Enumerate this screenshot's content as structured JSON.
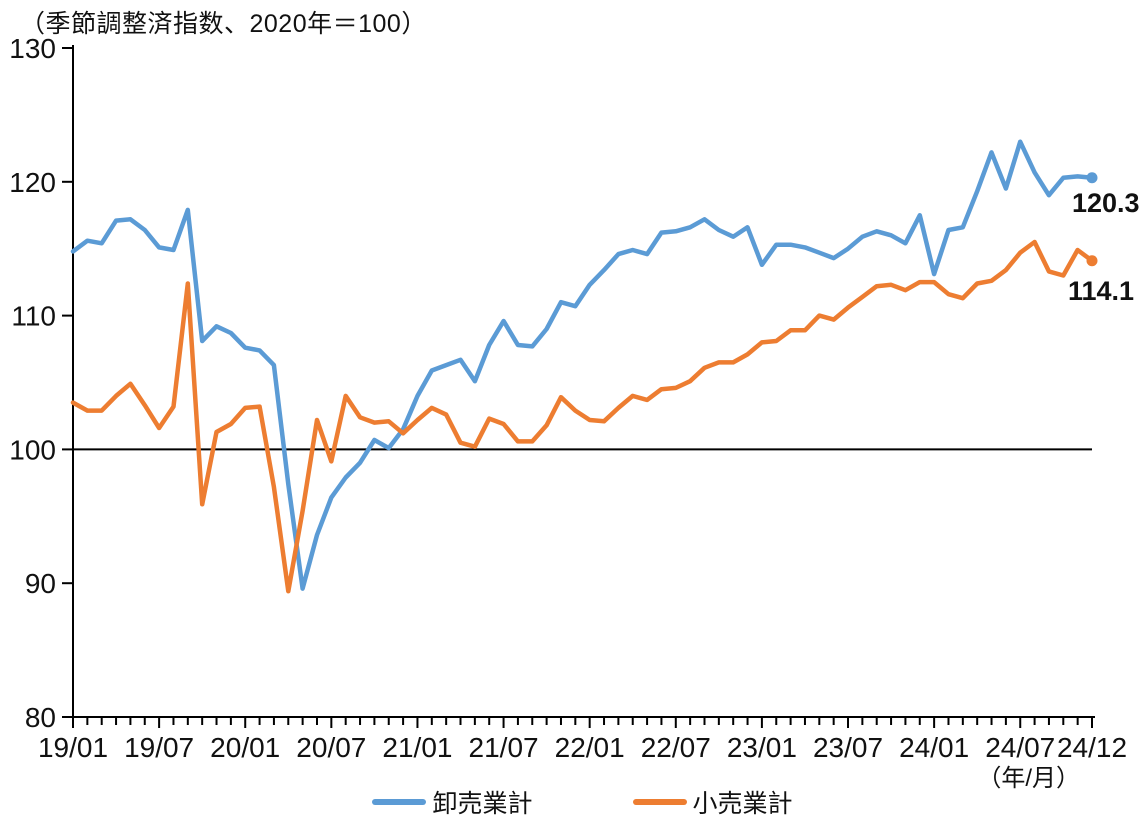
{
  "chart_data": {
    "type": "line",
    "title": "（季節調整済指数、2020年＝100）",
    "x_unit_label": "（年/月）",
    "xlabel": "",
    "ylabel": "",
    "ylim": [
      80,
      130
    ],
    "y_ticks": [
      80,
      90,
      100,
      110,
      120,
      130
    ],
    "baseline": 100,
    "grid": false,
    "legend_position": "bottom",
    "x_tick_indices": [
      0,
      6,
      12,
      18,
      24,
      30,
      36,
      42,
      48,
      54,
      60,
      66,
      71
    ],
    "categories": [
      "19/01",
      "19/02",
      "19/03",
      "19/04",
      "19/05",
      "19/06",
      "19/07",
      "19/08",
      "19/09",
      "19/10",
      "19/11",
      "19/12",
      "20/01",
      "20/02",
      "20/03",
      "20/04",
      "20/05",
      "20/06",
      "20/07",
      "20/08",
      "20/09",
      "20/10",
      "20/11",
      "20/12",
      "21/01",
      "21/02",
      "21/03",
      "21/04",
      "21/05",
      "21/06",
      "21/07",
      "21/08",
      "21/09",
      "21/10",
      "21/11",
      "21/12",
      "22/01",
      "22/02",
      "22/03",
      "22/04",
      "22/05",
      "22/06",
      "22/07",
      "22/08",
      "22/09",
      "22/10",
      "22/11",
      "22/12",
      "23/01",
      "23/02",
      "23/03",
      "23/04",
      "23/05",
      "23/06",
      "23/07",
      "23/08",
      "23/09",
      "23/10",
      "23/11",
      "23/12",
      "24/01",
      "24/02",
      "24/03",
      "24/04",
      "24/05",
      "24/06",
      "24/07",
      "24/08",
      "24/09",
      "24/10",
      "24/11",
      "24/12"
    ],
    "series": [
      {
        "name": "卸売業計",
        "slug": "wholesale",
        "color": "#5B9BD5",
        "values": [
          114.8,
          115.6,
          115.4,
          117.1,
          117.2,
          116.4,
          115.1,
          114.9,
          117.9,
          108.1,
          109.2,
          108.7,
          107.6,
          107.4,
          106.3,
          97.4,
          89.6,
          93.6,
          96.4,
          97.9,
          99.0,
          100.7,
          100.1,
          101.5,
          104.0,
          105.9,
          106.3,
          106.7,
          105.1,
          107.8,
          109.6,
          107.8,
          107.7,
          109.0,
          111.0,
          110.7,
          112.3,
          113.4,
          114.6,
          114.9,
          114.6,
          116.2,
          116.3,
          116.6,
          117.2,
          116.4,
          115.9,
          116.6,
          113.8,
          115.3,
          115.3,
          115.1,
          114.7,
          114.3,
          115.0,
          115.9,
          116.3,
          116.0,
          115.4,
          117.5,
          113.1,
          116.4,
          116.6,
          119.3,
          122.2,
          119.5,
          123.0,
          120.7,
          119.0,
          120.3,
          120.4,
          120.3
        ]
      },
      {
        "name": "小売業計",
        "slug": "retail",
        "color": "#ED7D31",
        "values": [
          103.5,
          102.9,
          102.9,
          104.0,
          104.9,
          103.3,
          101.6,
          103.2,
          112.4,
          95.9,
          101.3,
          101.9,
          103.1,
          103.2,
          97.2,
          89.4,
          95.4,
          102.2,
          99.1,
          104.0,
          102.4,
          102.0,
          102.1,
          101.2,
          102.2,
          103.1,
          102.6,
          100.5,
          100.2,
          102.3,
          101.9,
          100.6,
          100.6,
          101.8,
          103.9,
          102.9,
          102.2,
          102.1,
          103.1,
          104.0,
          103.7,
          104.5,
          104.6,
          105.1,
          106.1,
          106.5,
          106.5,
          107.1,
          108.0,
          108.1,
          108.9,
          108.9,
          110.0,
          109.7,
          110.6,
          111.4,
          112.2,
          112.3,
          111.9,
          112.5,
          112.5,
          111.6,
          111.3,
          112.4,
          112.6,
          113.4,
          114.7,
          115.5,
          113.3,
          113.0,
          114.9,
          114.1
        ]
      }
    ],
    "end_labels": {
      "wholesale": "120.3",
      "retail": "114.1"
    }
  }
}
